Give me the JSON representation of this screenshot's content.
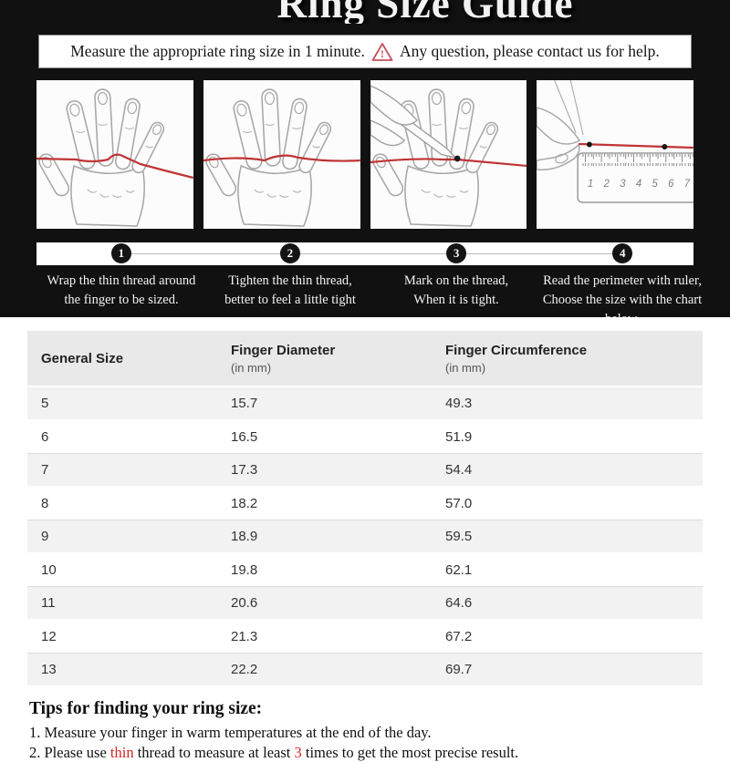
{
  "page_title": "Ring Size Guide",
  "banner": {
    "text_left": "Measure the appropriate ring size in 1 minute.",
    "warning_char": "!",
    "text_right": "Any question, please contact us for help."
  },
  "steps": [
    {
      "number": "1",
      "line1": "Wrap the thin thread around",
      "line2": "the finger to be sized."
    },
    {
      "number": "2",
      "line1": "Tighten the thin thread,",
      "line2": "better to feel a little tight"
    },
    {
      "number": "3",
      "line1": "Mark on the thread,",
      "line2": "When it is tight."
    },
    {
      "number": "4",
      "line1": "Read the perimeter with ruler,",
      "line2": "Choose the size with the chart below."
    }
  ],
  "illustrations": {
    "panel1": "hand-with-thread-wrapped-illustration",
    "panel2": "hand-thread-tightened-illustration",
    "panel3": "hand-marking-thread-illustration",
    "panel4": "thread-measured-with-ruler-illustration",
    "ruler_numbers": "1 2 3 4 5 6 7"
  },
  "table": {
    "headers": [
      {
        "title": "General Size",
        "sub": ""
      },
      {
        "title": "Finger Diameter",
        "sub": "(in mm)"
      },
      {
        "title": "Finger Circumference",
        "sub": "(in mm)"
      }
    ],
    "rows": [
      [
        "5",
        "15.7",
        "49.3"
      ],
      [
        "6",
        "16.5",
        "51.9"
      ],
      [
        "7",
        "17.3",
        "54.4"
      ],
      [
        "8",
        "18.2",
        "57.0"
      ],
      [
        "9",
        "18.9",
        "59.5"
      ],
      [
        "10",
        "19.8",
        "62.1"
      ],
      [
        "11",
        "20.6",
        "64.6"
      ],
      [
        "12",
        "21.3",
        "67.2"
      ],
      [
        "13",
        "22.2",
        "69.7"
      ]
    ]
  },
  "tips": {
    "title": "Tips for finding your ring size:",
    "tip1": "1. Measure your finger in warm temperatures at the end of the day.",
    "tip2_pre": "2. Please use ",
    "tip2_red1": "thin",
    "tip2_mid": " thread to measure at least ",
    "tip2_red2": "3",
    "tip2_post": " times to get the most precise result."
  },
  "colors": {
    "background": "#111111",
    "accent_red": "#c03434",
    "table_header_bg": "#e9e9e9",
    "row_alt_bg": "#f2f2f2"
  }
}
